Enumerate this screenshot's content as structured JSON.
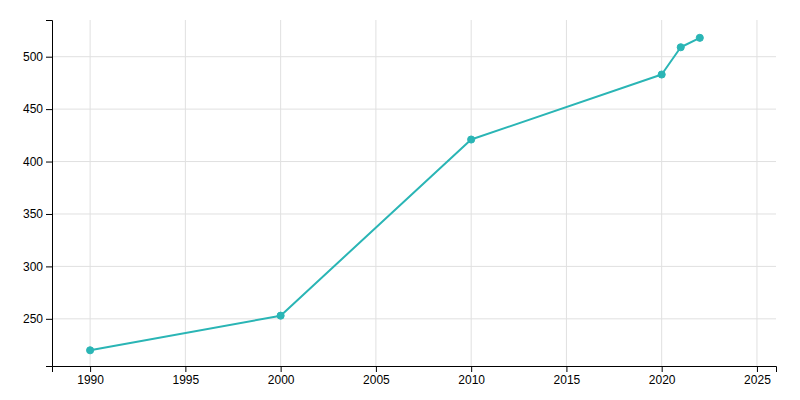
{
  "chart_data": {
    "type": "line",
    "x": [
      1990,
      2000,
      2010,
      2020,
      2021,
      2022
    ],
    "values": [
      220,
      253,
      421,
      483,
      509,
      518
    ],
    "color": "#2ab5b5",
    "marker": "circle",
    "xlim": [
      1988,
      2026
    ],
    "ylim": [
      205,
      535
    ],
    "xticks": [
      1990,
      1995,
      2000,
      2005,
      2010,
      2015,
      2020,
      2025
    ],
    "yticks": [
      250,
      300,
      350,
      400,
      450,
      500
    ],
    "grid": true
  }
}
